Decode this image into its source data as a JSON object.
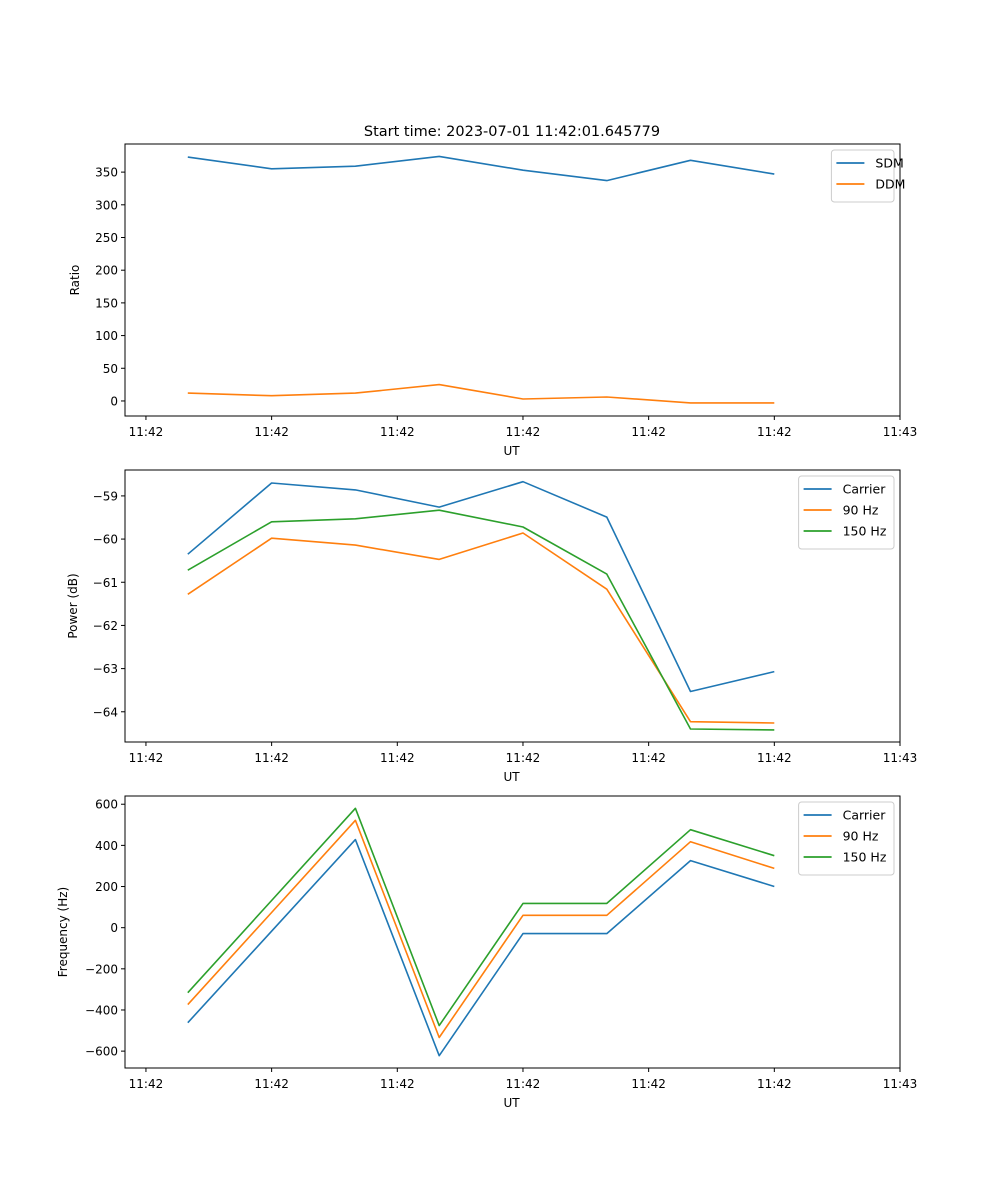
{
  "figure_title": "Start time: 2023-07-01 11:42:01.645779",
  "chart_data": [
    {
      "type": "line",
      "title": "Start time: 2023-07-01 11:42:01.645779",
      "xlabel": "UT",
      "ylabel": "Ratio",
      "x": [
        0,
        1,
        2,
        3,
        4,
        5,
        6,
        7
      ],
      "xlim": [
        -0.75,
        8.5
      ],
      "xticks": [
        -0.5,
        1.0,
        2.5,
        4.0,
        5.5,
        7.0,
        8.5
      ],
      "xtick_labels": [
        "11:42",
        "11:42",
        "11:42",
        "11:42",
        "11:42",
        "11:42",
        "11:43"
      ],
      "ylim": [
        -23,
        393
      ],
      "yticks": [
        0,
        50,
        100,
        150,
        200,
        250,
        300,
        350
      ],
      "ytick_labels": [
        "0",
        "50",
        "100",
        "150",
        "200",
        "250",
        "300",
        "350"
      ],
      "legend": "top-right",
      "grid": false,
      "series": [
        {
          "name": "SDM",
          "color": "#1f77b4",
          "values": [
            373,
            355,
            359,
            374,
            353,
            337,
            368,
            347
          ]
        },
        {
          "name": "DDM",
          "color": "#ff7f0e",
          "values": [
            12,
            8,
            12,
            25,
            3,
            6,
            -3,
            -3
          ]
        }
      ]
    },
    {
      "type": "line",
      "title": "",
      "xlabel": "UT",
      "ylabel": "Power (dB)",
      "x": [
        0,
        1,
        2,
        3,
        4,
        5,
        6,
        7
      ],
      "xlim": [
        -0.75,
        8.5
      ],
      "xticks": [
        -0.5,
        1.0,
        2.5,
        4.0,
        5.5,
        7.0,
        8.5
      ],
      "xtick_labels": [
        "11:42",
        "11:42",
        "11:42",
        "11:42",
        "11:42",
        "11:42",
        "11:43"
      ],
      "ylim": [
        -64.7,
        -58.4
      ],
      "yticks": [
        -64,
        -63,
        -62,
        -61,
        -60,
        -59
      ],
      "ytick_labels": [
        "−64",
        "−63",
        "−62",
        "−61",
        "−60",
        "−59"
      ],
      "legend": "top-right",
      "grid": false,
      "series": [
        {
          "name": "Carrier",
          "color": "#1f77b4",
          "values": [
            -60.35,
            -58.7,
            -58.86,
            -59.26,
            -58.67,
            -59.49,
            -63.53,
            -63.07
          ]
        },
        {
          "name": "90 Hz",
          "color": "#ff7f0e",
          "values": [
            -61.28,
            -59.98,
            -60.14,
            -60.47,
            -59.86,
            -61.16,
            -64.23,
            -64.26
          ]
        },
        {
          "name": "150 Hz",
          "color": "#2ca02c",
          "values": [
            -60.72,
            -59.6,
            -59.53,
            -59.33,
            -59.72,
            -60.81,
            -64.4,
            -64.42
          ]
        }
      ]
    },
    {
      "type": "line",
      "title": "",
      "xlabel": "UT",
      "ylabel": "Frequency (Hz)",
      "x": [
        0,
        1,
        2,
        3,
        4,
        5,
        6,
        7
      ],
      "xlim": [
        -0.75,
        8.5
      ],
      "xticks": [
        -0.5,
        1.0,
        2.5,
        4.0,
        5.5,
        7.0,
        8.5
      ],
      "xtick_labels": [
        "11:42",
        "11:42",
        "11:42",
        "11:42",
        "11:42",
        "11:42",
        "11:43"
      ],
      "ylim": [
        -682,
        640
      ],
      "yticks": [
        -600,
        -400,
        -200,
        0,
        200,
        400,
        600
      ],
      "ytick_labels": [
        "−600",
        "−400",
        "−200",
        "0",
        "200",
        "400",
        "600"
      ],
      "legend": "top-right",
      "grid": false,
      "series": [
        {
          "name": "Carrier",
          "color": "#1f77b4",
          "values": [
            -462,
            -17,
            428,
            -622,
            -29,
            -29,
            326,
            200
          ]
        },
        {
          "name": "90 Hz",
          "color": "#ff7f0e",
          "values": [
            -374,
            74,
            522,
            -534,
            60,
            60,
            418,
            288
          ]
        },
        {
          "name": "150 Hz",
          "color": "#2ca02c",
          "values": [
            -316,
            132,
            580,
            -476,
            118,
            118,
            476,
            350
          ]
        }
      ]
    }
  ]
}
